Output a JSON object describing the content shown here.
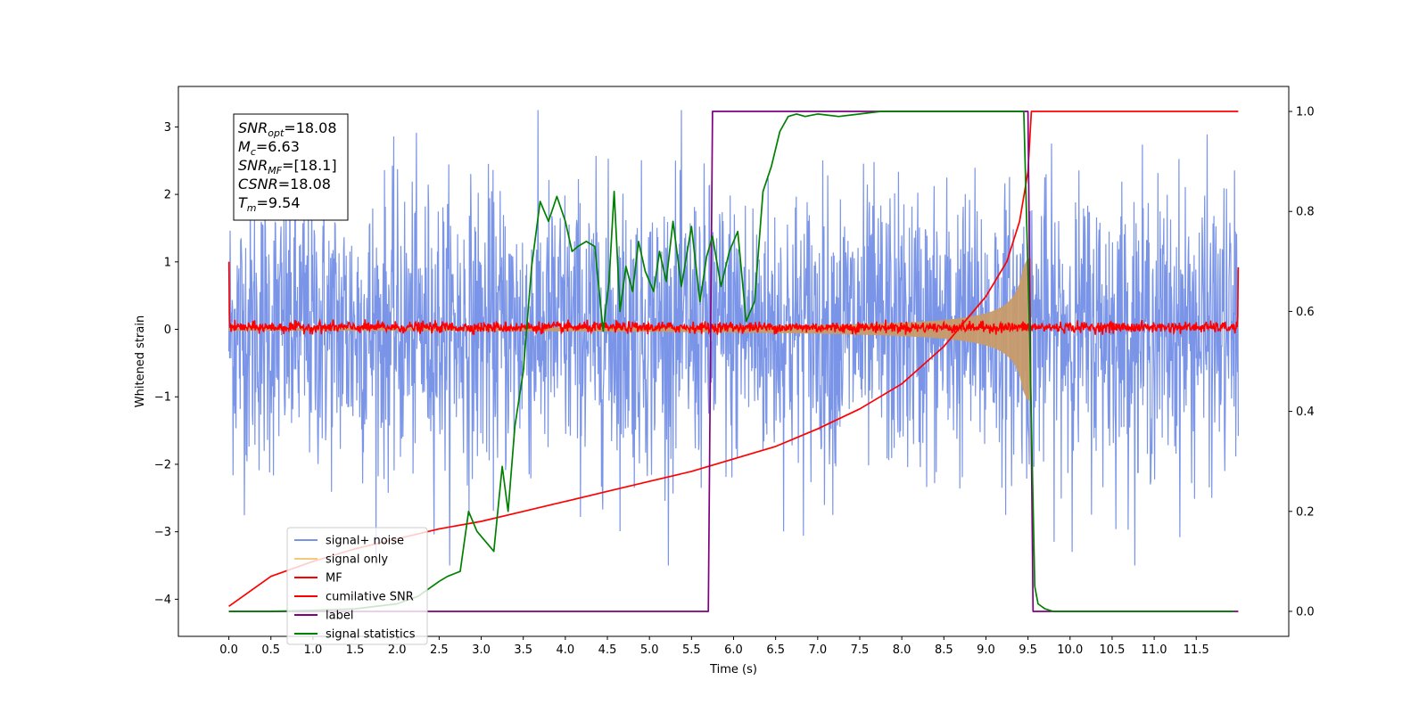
{
  "chart_data": {
    "type": "line",
    "title": "",
    "xlabel": "Time (s)",
    "ylabel": "Whitened strain",
    "xlim": [
      -0.6,
      12.6
    ],
    "ylim_left": [
      -4.55,
      3.6
    ],
    "ylim_right": [
      -0.05,
      1.05
    ],
    "x_ticks": [
      "0.0",
      "0.5",
      "1.0",
      "1.5",
      "2.0",
      "2.5",
      "3.0",
      "3.5",
      "4.0",
      "4.5",
      "5.0",
      "5.5",
      "6.0",
      "6.5",
      "7.0",
      "7.5",
      "8.0",
      "8.5",
      "9.0",
      "9.5",
      "10.0",
      "10.5",
      "11.0",
      "11.5"
    ],
    "y_ticks_left": [
      3,
      2,
      1,
      0,
      -1,
      -2,
      -3,
      -4
    ],
    "y_tick_labels_left": [
      "3",
      "2",
      "1",
      "0",
      "−1",
      "−2",
      "−3",
      "−4"
    ],
    "y_ticks_right": [
      1.0,
      0.8,
      0.6,
      0.4,
      0.2,
      0.0
    ],
    "y_tick_labels_right": [
      "1.0",
      "0.8",
      "0.6",
      "0.4",
      "0.2",
      "0.0"
    ],
    "grid": false,
    "legend_position": "lower-left",
    "annotation": {
      "snr_opt": "=18.08",
      "mc": "=6.63",
      "snr_mf": "=[18.1]",
      "csnr": "=18.08",
      "tm": "=9.54"
    },
    "series": [
      {
        "name": "signal+ noise",
        "color": "#7a94e8",
        "axis": "left",
        "kind": "noise",
        "noise_range": [
          -3.5,
          3.25
        ],
        "t_range": [
          0.0,
          12.0
        ]
      },
      {
        "name": "signal only",
        "color": "#c89b6a",
        "axis": "left",
        "kind": "chirp_envelope",
        "t_start": 0.0,
        "t_merger": 9.54,
        "amplitude_end": 1.05,
        "amplitude_start": 0.03
      },
      {
        "name": "MF",
        "color": "#ff0000",
        "axis": "left",
        "kind": "noise_band",
        "noise_range": [
          -0.08,
          0.18
        ],
        "edge_values": [
          1.0,
          0.92
        ],
        "t_range": [
          0.0,
          12.0
        ]
      },
      {
        "name": "cumilative SNR",
        "color": "#ff0000",
        "axis": "right",
        "x": [
          0.0,
          0.5,
          1.0,
          1.5,
          2.0,
          2.5,
          3.0,
          3.5,
          4.0,
          4.5,
          5.0,
          5.5,
          6.0,
          6.5,
          7.0,
          7.5,
          8.0,
          8.5,
          9.0,
          9.25,
          9.4,
          9.5,
          9.54,
          12.0
        ],
        "values": [
          0.01,
          0.07,
          0.1,
          0.125,
          0.145,
          0.165,
          0.18,
          0.2,
          0.22,
          0.24,
          0.26,
          0.28,
          0.305,
          0.33,
          0.365,
          0.405,
          0.455,
          0.53,
          0.63,
          0.7,
          0.78,
          0.88,
          1.0,
          1.0
        ]
      },
      {
        "name": "label",
        "color": "#800080",
        "axis": "right",
        "x": [
          0.0,
          5.7,
          5.75,
          9.5,
          9.56,
          12.0
        ],
        "values": [
          0.0,
          0.0,
          1.0,
          1.0,
          0.0,
          0.0
        ]
      },
      {
        "name": "signal statistics",
        "color": "#008000",
        "axis": "right",
        "x": [
          0.0,
          0.5,
          1.0,
          1.5,
          2.0,
          2.25,
          2.5,
          2.6,
          2.75,
          2.85,
          2.95,
          3.05,
          3.15,
          3.25,
          3.32,
          3.4,
          3.5,
          3.6,
          3.7,
          3.8,
          3.9,
          4.0,
          4.08,
          4.15,
          4.25,
          4.35,
          4.45,
          4.52,
          4.58,
          4.65,
          4.72,
          4.8,
          4.87,
          4.95,
          5.05,
          5.12,
          5.2,
          5.28,
          5.38,
          5.45,
          5.5,
          5.6,
          5.68,
          5.75,
          5.85,
          5.95,
          6.05,
          6.15,
          6.25,
          6.35,
          6.45,
          6.55,
          6.65,
          6.75,
          6.85,
          7.0,
          7.25,
          7.5,
          7.75,
          8.0,
          8.5,
          9.0,
          9.3,
          9.45,
          9.52,
          9.58,
          9.62,
          9.7,
          9.8,
          10.0,
          11.0,
          11.95
        ],
        "values": [
          0.0,
          0.0,
          0.002,
          0.005,
          0.015,
          0.03,
          0.06,
          0.07,
          0.08,
          0.2,
          0.16,
          0.14,
          0.12,
          0.29,
          0.2,
          0.37,
          0.48,
          0.69,
          0.82,
          0.78,
          0.83,
          0.78,
          0.72,
          0.73,
          0.74,
          0.73,
          0.56,
          0.66,
          0.84,
          0.6,
          0.69,
          0.64,
          0.74,
          0.68,
          0.64,
          0.72,
          0.66,
          0.78,
          0.65,
          0.72,
          0.77,
          0.62,
          0.71,
          0.75,
          0.65,
          0.72,
          0.76,
          0.58,
          0.62,
          0.84,
          0.89,
          0.96,
          0.99,
          0.995,
          0.99,
          0.995,
          0.99,
          0.995,
          1.0,
          1.0,
          1.0,
          1.0,
          1.0,
          1.0,
          0.55,
          0.05,
          0.015,
          0.005,
          0.0,
          0.0,
          0.0,
          0.0
        ]
      }
    ]
  }
}
